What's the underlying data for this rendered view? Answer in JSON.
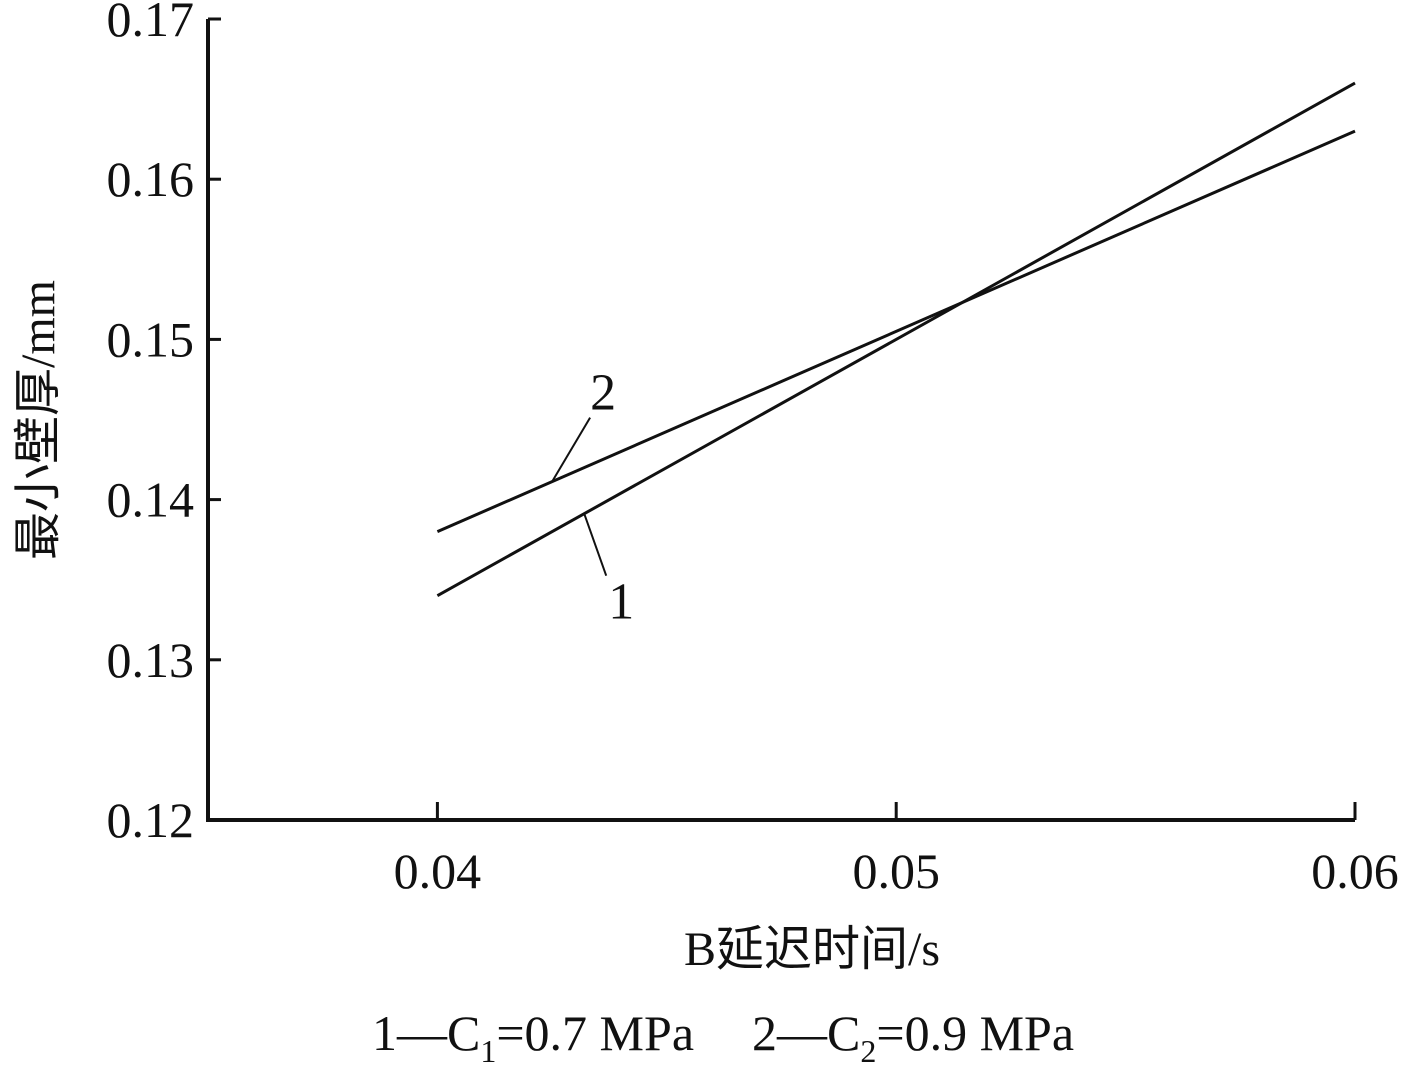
{
  "chart_data": {
    "type": "line",
    "xlabel": "B延迟时间/s",
    "ylabel": "最小壁厚/mm",
    "xlim": [
      0.035,
      0.06
    ],
    "ylim": [
      0.12,
      0.17
    ],
    "x_ticks": [
      "0.04",
      "0.05",
      "0.06"
    ],
    "y_ticks": [
      "0.12",
      "0.13",
      "0.14",
      "0.15",
      "0.16",
      "0.17"
    ],
    "grid": false,
    "series": [
      {
        "name": "1",
        "x": [
          0.04,
          0.06
        ],
        "y": [
          0.134,
          0.166
        ]
      },
      {
        "name": "2",
        "x": [
          0.04,
          0.06
        ],
        "y": [
          0.138,
          0.163
        ]
      }
    ],
    "legend": [
      {
        "lead": "1—C",
        "sub": "1",
        "tail": "=0.7 MPa"
      },
      {
        "lead": "2—C",
        "sub": "2",
        "tail": "=0.9 MPa"
      }
    ],
    "colors": {
      "line": "#111111",
      "axis": "#111111"
    }
  }
}
